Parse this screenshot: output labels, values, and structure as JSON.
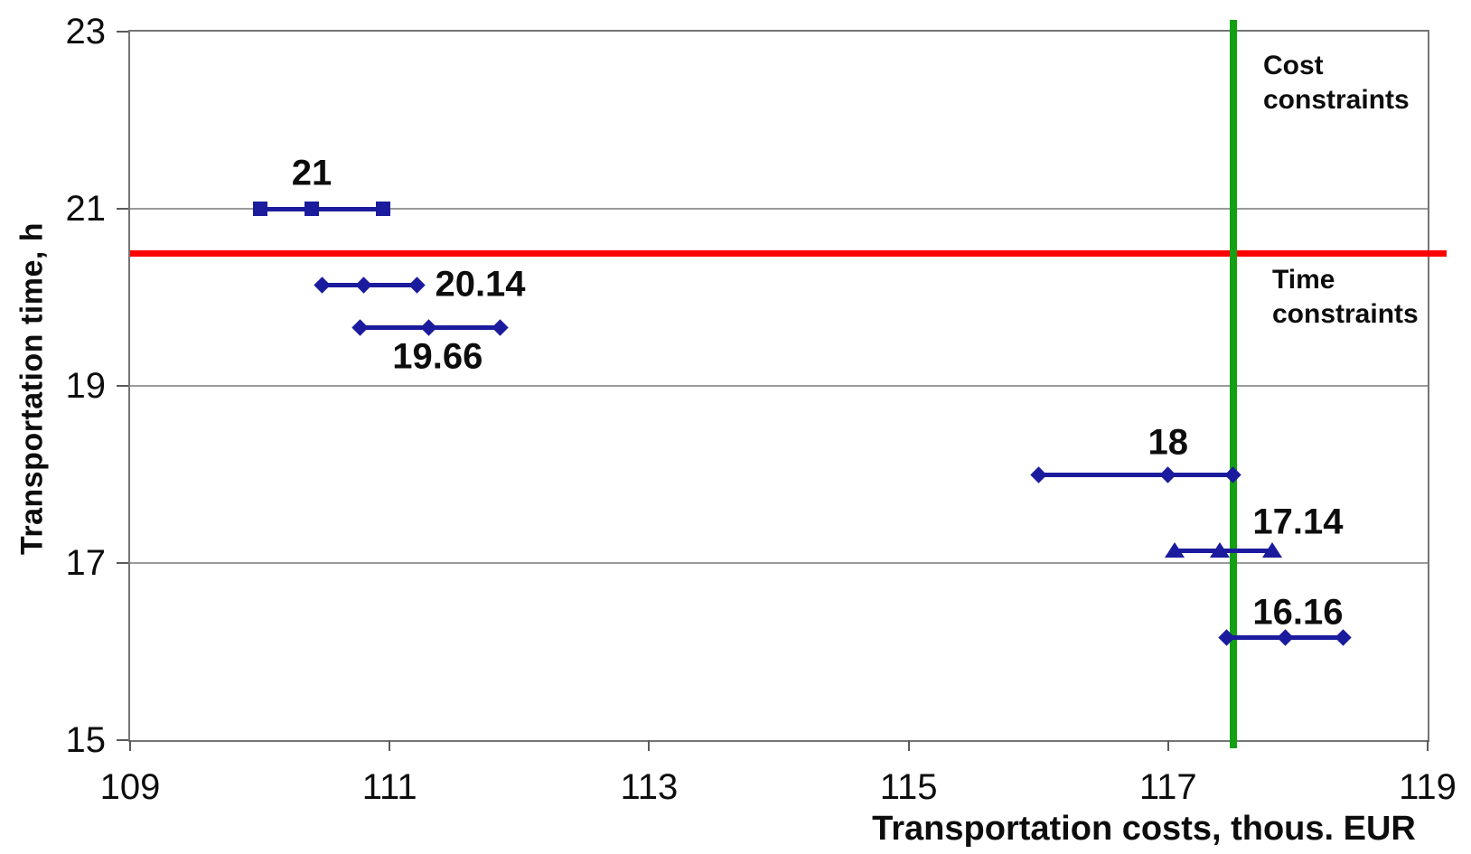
{
  "chart_data": {
    "type": "line",
    "title": "",
    "xlabel": "Transportation costs, thous. EUR",
    "ylabel": "Transportation time, h",
    "xlim": [
      109,
      119
    ],
    "ylim": [
      15,
      23
    ],
    "xticks": [
      "109",
      "111",
      "113",
      "115",
      "117",
      "119"
    ],
    "yticks": [
      "15",
      "17",
      "19",
      "21",
      "23"
    ],
    "grid": "horizontal-only",
    "legend": "none",
    "series": [
      {
        "name": "21",
        "time": 21,
        "costs": [
          110.0,
          110.4,
          110.95
        ],
        "marker": "square",
        "label": "21",
        "label_anchor": {
          "x": 110.4,
          "y": 21.4,
          "align": "center"
        }
      },
      {
        "name": "20.14",
        "time": 20.14,
        "costs": [
          110.48,
          110.8,
          111.21
        ],
        "marker": "diamond",
        "label": "20.14",
        "label_anchor": {
          "x": 111.35,
          "y": 20.14,
          "align": "left"
        }
      },
      {
        "name": "19.66",
        "time": 19.66,
        "costs": [
          110.77,
          111.3,
          111.85
        ],
        "marker": "diamond",
        "label": "19.66",
        "label_anchor": {
          "x": 111.37,
          "y": 19.33,
          "align": "center"
        }
      },
      {
        "name": "18",
        "time": 18,
        "costs": [
          116.0,
          117.0,
          117.5
        ],
        "marker": "diamond",
        "label": "18",
        "label_anchor": {
          "x": 117.0,
          "y": 18.36,
          "align": "center"
        }
      },
      {
        "name": "17.14",
        "time": 17.14,
        "costs": [
          117.05,
          117.4,
          117.8
        ],
        "marker": "triangle",
        "label": "17.14",
        "label_anchor": {
          "x": 118.0,
          "y": 17.46,
          "align": "center"
        }
      },
      {
        "name": "16.16",
        "time": 16.16,
        "costs": [
          117.45,
          117.9,
          118.35
        ],
        "marker": "diamond",
        "label": "16.16",
        "label_anchor": {
          "x": 118.0,
          "y": 16.44,
          "align": "center"
        }
      }
    ],
    "constraints": {
      "time": {
        "axis": "y",
        "value": 20.5,
        "color": "#fe0000",
        "label": "Time constraints",
        "label_lines": [
          "Time",
          "constraints"
        ]
      },
      "cost": {
        "axis": "x",
        "value": 117.5,
        "color": "#14a014",
        "label": "Cost constraints",
        "label_lines": [
          "Cost",
          "constraints"
        ]
      }
    },
    "colors": {
      "series": "#1b1b9e",
      "grid": "#9a9a9a",
      "border": "#757575",
      "text": "#0d0d0d",
      "time_constraint": "#fe0000",
      "cost_constraint": "#14a014"
    }
  }
}
